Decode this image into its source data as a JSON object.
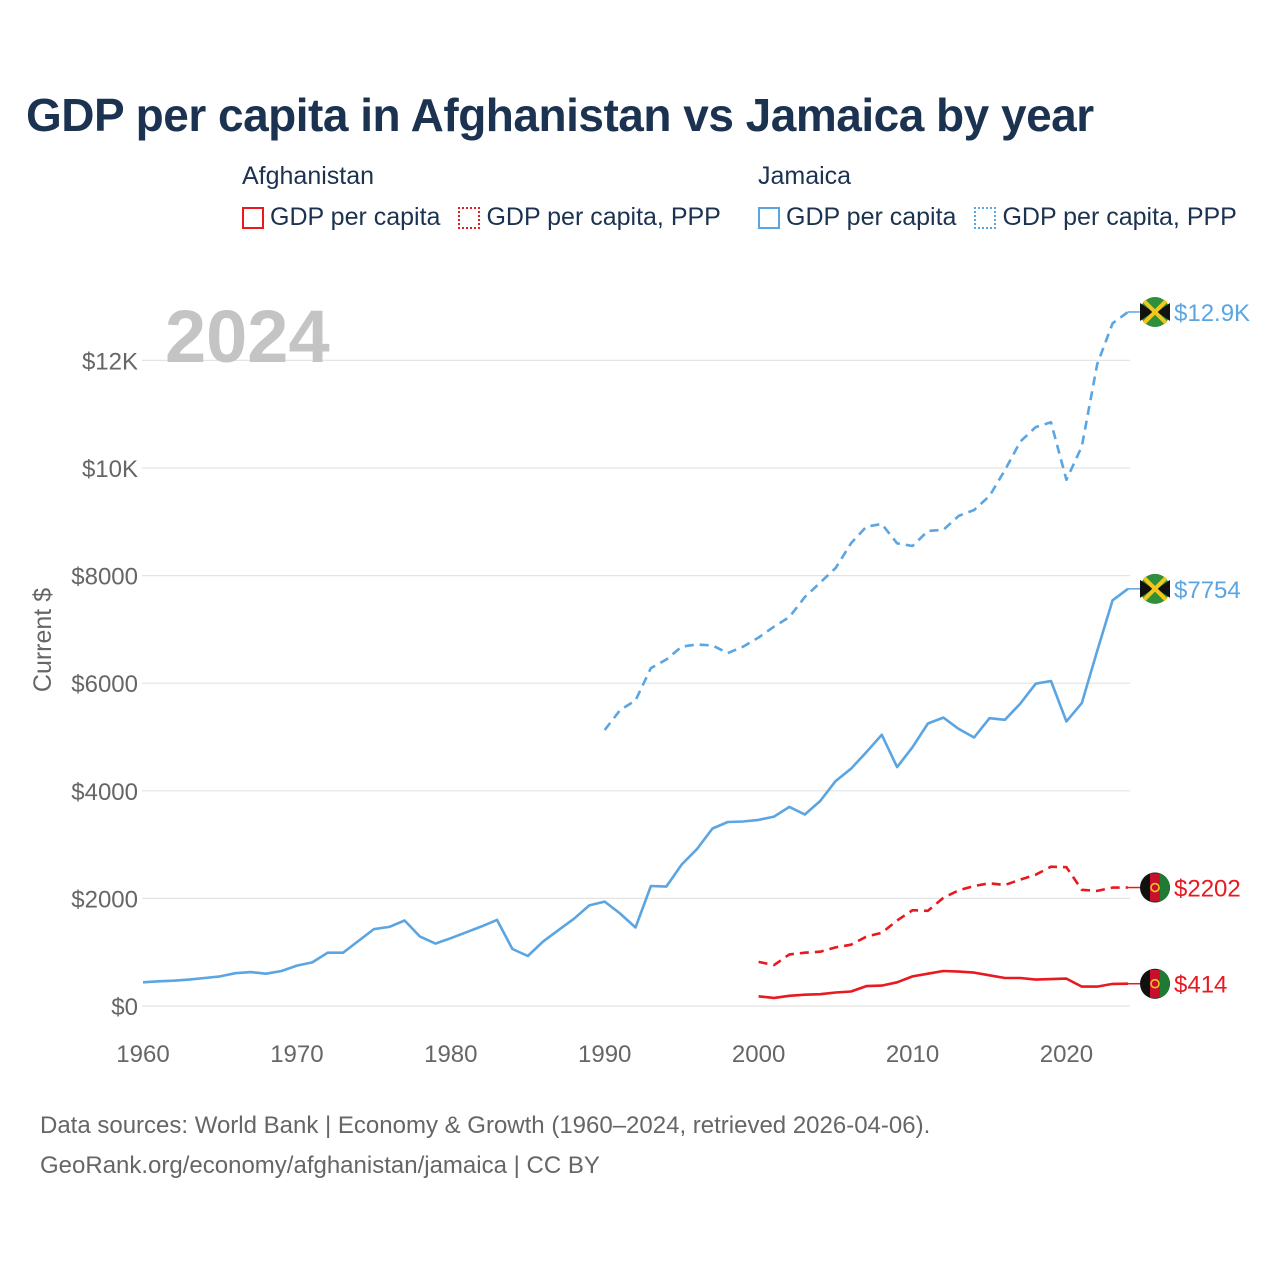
{
  "title": "GDP per capita in Afghanistan vs Jamaica by year",
  "legend": [
    {
      "country": "Afghanistan",
      "color": "#e8191f",
      "items": [
        {
          "label": "GDP per capita",
          "style": "solid"
        },
        {
          "label": "GDP per capita, PPP",
          "style": "dotted"
        }
      ]
    },
    {
      "country": "Jamaica",
      "color": "#5aa5e2",
      "items": [
        {
          "label": "GDP per capita",
          "style": "solid"
        },
        {
          "label": "GDP per capita, PPP",
          "style": "dotted"
        }
      ]
    }
  ],
  "footer": {
    "line1": "Data sources: World Bank | Economy & Growth (1960–2024, retrieved 2026-04-06).",
    "line2": "GeoRank.org/economy/afghanistan/jamaica | CC BY"
  },
  "chart_data": {
    "type": "line",
    "year_label": "2024",
    "ylabel": "Current $",
    "xlim": [
      1960,
      2024
    ],
    "ylim": [
      0,
      13000
    ],
    "x_ticks": [
      1960,
      1970,
      1980,
      1990,
      2000,
      2010,
      2020
    ],
    "y_ticks": [
      {
        "value": 0,
        "label": "$0"
      },
      {
        "value": 2000,
        "label": "$2000"
      },
      {
        "value": 4000,
        "label": "$4000"
      },
      {
        "value": 6000,
        "label": "$6000"
      },
      {
        "value": 8000,
        "label": "$8000"
      },
      {
        "value": 10000,
        "label": "$10K"
      },
      {
        "value": 12000,
        "label": "$12K"
      }
    ],
    "series": [
      {
        "name": "Jamaica GDP per capita, PPP",
        "color": "#5aa5e2",
        "dashed": true,
        "end_label": "$12.9K",
        "flag": "jamaica",
        "x": [
          1990,
          1991,
          1992,
          1993,
          1994,
          1995,
          1996,
          1997,
          1998,
          1999,
          2000,
          2001,
          2002,
          2003,
          2004,
          2005,
          2006,
          2007,
          2008,
          2009,
          2010,
          2011,
          2012,
          2013,
          2014,
          2015,
          2016,
          2017,
          2018,
          2019,
          2020,
          2021,
          2022,
          2023,
          2024
        ],
        "values": [
          5130,
          5500,
          5680,
          6280,
          6440,
          6680,
          6720,
          6700,
          6560,
          6680,
          6850,
          7050,
          7230,
          7600,
          7870,
          8140,
          8600,
          8910,
          8960,
          8600,
          8550,
          8830,
          8850,
          9110,
          9220,
          9480,
          9960,
          10490,
          10760,
          10850,
          9780,
          10400,
          11930,
          12690,
          12900
        ]
      },
      {
        "name": "Jamaica GDP per capita",
        "color": "#5aa5e2",
        "dashed": false,
        "end_label": "$7754",
        "flag": "jamaica",
        "x": [
          1960,
          1961,
          1962,
          1963,
          1964,
          1965,
          1966,
          1967,
          1968,
          1969,
          1970,
          1971,
          1972,
          1973,
          1974,
          1975,
          1976,
          1977,
          1978,
          1979,
          1980,
          1981,
          1982,
          1983,
          1984,
          1985,
          1986,
          1987,
          1988,
          1989,
          1990,
          1991,
          1992,
          1993,
          1994,
          1995,
          1996,
          1997,
          1998,
          1999,
          2000,
          2001,
          2002,
          2003,
          2004,
          2005,
          2006,
          2007,
          2008,
          2009,
          2010,
          2011,
          2012,
          2013,
          2014,
          2015,
          2016,
          2017,
          2018,
          2019,
          2020,
          2021,
          2022,
          2023,
          2024
        ],
        "values": [
          440,
          460,
          470,
          490,
          520,
          550,
          610,
          630,
          600,
          650,
          750,
          810,
          990,
          990,
          1210,
          1430,
          1470,
          1590,
          1290,
          1160,
          1260,
          1370,
          1480,
          1600,
          1060,
          930,
          1200,
          1410,
          1620,
          1870,
          1940,
          1720,
          1460,
          2230,
          2220,
          2630,
          2920,
          3300,
          3420,
          3430,
          3460,
          3520,
          3700,
          3560,
          3810,
          4180,
          4410,
          4720,
          5040,
          4440,
          4810,
          5250,
          5360,
          5150,
          4990,
          5350,
          5320,
          5620,
          5990,
          6040,
          5290,
          5630,
          6600,
          7540,
          7754
        ]
      },
      {
        "name": "Afghanistan GDP per capita, PPP",
        "color": "#e8191f",
        "dashed": true,
        "end_label": "$2202",
        "flag": "afghanistan",
        "x": [
          2000,
          2001,
          2002,
          2003,
          2004,
          2005,
          2006,
          2007,
          2008,
          2009,
          2010,
          2011,
          2012,
          2013,
          2014,
          2015,
          2016,
          2017,
          2018,
          2019,
          2020,
          2021,
          2022,
          2023,
          2024
        ],
        "values": [
          820,
          760,
          960,
          990,
          1010,
          1090,
          1140,
          1290,
          1360,
          1590,
          1780,
          1770,
          2010,
          2150,
          2230,
          2280,
          2250,
          2350,
          2440,
          2590,
          2580,
          2160,
          2140,
          2200,
          2202
        ]
      },
      {
        "name": "Afghanistan GDP per capita",
        "color": "#e8191f",
        "dashed": false,
        "end_label": "$414",
        "flag": "afghanistan",
        "x": [
          2000,
          2001,
          2002,
          2003,
          2004,
          2005,
          2006,
          2007,
          2008,
          2009,
          2010,
          2011,
          2012,
          2013,
          2014,
          2015,
          2016,
          2017,
          2018,
          2019,
          2020,
          2021,
          2022,
          2023,
          2024
        ],
        "values": [
          180,
          150,
          190,
          210,
          220,
          250,
          270,
          370,
          380,
          440,
          550,
          600,
          650,
          640,
          620,
          570,
          520,
          520,
          490,
          500,
          510,
          360,
          360,
          410,
          414
        ]
      }
    ]
  }
}
